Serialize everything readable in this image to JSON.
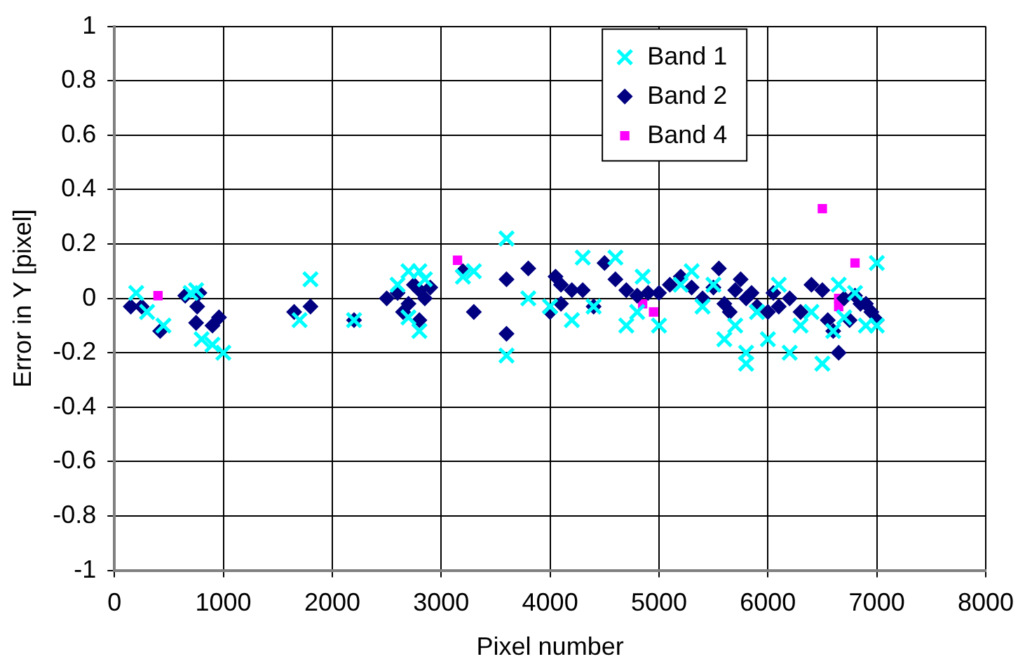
{
  "chart_data": {
    "type": "scatter",
    "xlabel": "Pixel number",
    "ylabel": "Error in Y [pixel]",
    "xlim": [
      0,
      8000
    ],
    "xticks": [
      0,
      1000,
      2000,
      3000,
      4000,
      5000,
      6000,
      7000,
      8000
    ],
    "ylim": [
      -1,
      1
    ],
    "yticks": [
      -1,
      -0.8,
      -0.6,
      -0.4,
      -0.2,
      0,
      0.2,
      0.4,
      0.6,
      0.8,
      1
    ],
    "grid": true,
    "legend": "top right",
    "series": [
      {
        "name": "Band 1",
        "color": "#00ffff",
        "marker": "cross",
        "x": [
          200,
          300,
          450,
          700,
          750,
          800,
          900,
          1000,
          1700,
          1800,
          2200,
          2600,
          2700,
          2800,
          2700,
          2850,
          2800,
          3200,
          3300,
          3600,
          3600,
          3800,
          4000,
          4200,
          4300,
          4400,
          4600,
          4700,
          4800,
          4850,
          5000,
          5200,
          5300,
          5400,
          5500,
          5600,
          5700,
          5800,
          5800,
          5900,
          6000,
          6100,
          6200,
          6300,
          6400,
          6500,
          6600,
          6650,
          6700,
          6800,
          6900,
          7000,
          7000
        ],
        "values": [
          0.02,
          -0.05,
          -0.1,
          0.02,
          0.03,
          -0.15,
          -0.17,
          -0.2,
          -0.08,
          0.07,
          -0.08,
          0.05,
          0.1,
          0.1,
          -0.07,
          0.07,
          -0.12,
          0.08,
          0.1,
          0.22,
          -0.21,
          0,
          -0.03,
          -0.08,
          0.15,
          -0.03,
          0.15,
          -0.1,
          -0.05,
          0.08,
          -0.1,
          0.05,
          0.1,
          -0.03,
          0.05,
          -0.15,
          -0.1,
          -0.2,
          -0.24,
          -0.05,
          -0.15,
          0.05,
          -0.2,
          -0.1,
          -0.05,
          -0.24,
          -0.12,
          0.05,
          -0.07,
          0.02,
          -0.1,
          0.13,
          -0.1
        ]
      },
      {
        "name": "Band 2",
        "color": "#000080",
        "marker": "diamond",
        "x": [
          150,
          250,
          420,
          650,
          760,
          780,
          750,
          900,
          960,
          1650,
          1800,
          2200,
          2500,
          2600,
          2650,
          2700,
          2750,
          2800,
          2850,
          2800,
          2900,
          3200,
          3300,
          3600,
          3600,
          3800,
          4000,
          4050,
          4100,
          4100,
          4200,
          4300,
          4400,
          4500,
          4600,
          4700,
          4800,
          4900,
          5000,
          5100,
          5200,
          5300,
          5400,
          5500,
          5550,
          5600,
          5650,
          5700,
          5750,
          5800,
          5850,
          5900,
          6000,
          6050,
          6100,
          6200,
          6300,
          6400,
          6500,
          6550,
          6600,
          6650,
          6700,
          6750,
          6800,
          6850,
          6900,
          6950,
          7000
        ],
        "values": [
          -0.03,
          -0.03,
          -0.12,
          0.01,
          -0.03,
          0.02,
          -0.09,
          -0.1,
          -0.07,
          -0.05,
          -0.03,
          -0.08,
          0,
          0.02,
          -0.05,
          -0.02,
          0.05,
          0.03,
          0,
          -0.08,
          0.04,
          0.1,
          -0.05,
          0.07,
          -0.13,
          0.11,
          -0.05,
          0.08,
          0.05,
          -0.02,
          0.03,
          0.03,
          -0.03,
          0.13,
          0.07,
          0.03,
          0.01,
          0.02,
          0.02,
          0.05,
          0.08,
          0.04,
          0,
          0.04,
          0.11,
          -0.02,
          -0.05,
          0.03,
          0.07,
          0,
          0.02,
          -0.03,
          -0.05,
          0.02,
          -0.03,
          0,
          -0.05,
          0.05,
          0.03,
          -0.08,
          -0.12,
          -0.2,
          0,
          -0.08,
          0.01,
          -0.02,
          -0.02,
          -0.05,
          -0.08
        ]
      },
      {
        "name": "Band 4",
        "color": "#ff00ff",
        "marker": "square",
        "x": [
          400,
          3150,
          4850,
          4950,
          6500,
          6650,
          6650,
          6800
        ],
        "values": [
          0.01,
          0.14,
          -0.02,
          -0.05,
          0.33,
          0,
          -0.03,
          0.13
        ]
      }
    ]
  }
}
